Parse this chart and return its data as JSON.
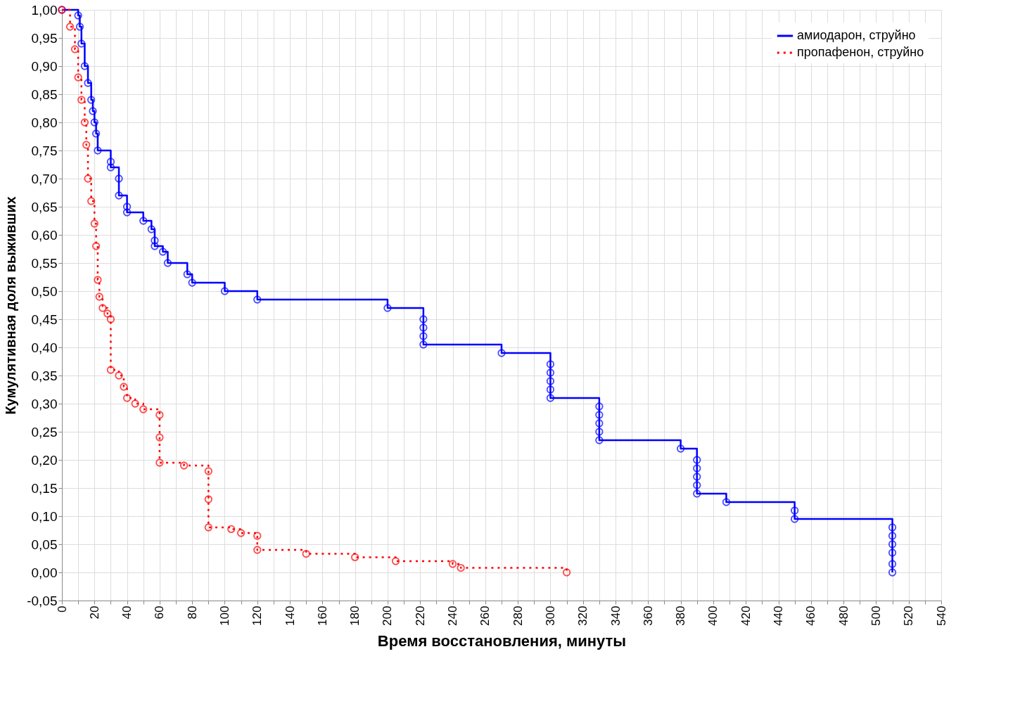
{
  "chart_data": {
    "type": "step",
    "xlabel": "Время восстановления, минуты",
    "ylabel": "Кумулятивная доля выживших",
    "xlim": [
      0,
      540
    ],
    "xticks": [
      0,
      {
        "value": 10,
        "label": null
      },
      20,
      {
        "value": 30,
        "label": null
      },
      40,
      {
        "value": 50,
        "label": null
      },
      60,
      {
        "value": 70,
        "label": null
      },
      80,
      {
        "value": 90,
        "label": null
      },
      100,
      {
        "value": 110,
        "label": null
      },
      120,
      {
        "value": 130,
        "label": null
      },
      140,
      {
        "value": 150,
        "label": null
      },
      160,
      {
        "value": 170,
        "label": null
      },
      180,
      {
        "value": 190,
        "label": null
      },
      200,
      {
        "value": 210,
        "label": null
      },
      220,
      {
        "value": 230,
        "label": null
      },
      240,
      {
        "value": 250,
        "label": null
      },
      260,
      {
        "value": 270,
        "label": null
      },
      280,
      {
        "value": 290,
        "label": null
      },
      300,
      {
        "value": 310,
        "label": null
      },
      320,
      {
        "value": 330,
        "label": null
      },
      340,
      {
        "value": 350,
        "label": null
      },
      360,
      {
        "value": 370,
        "label": null
      },
      380,
      {
        "value": 390,
        "label": null
      },
      400,
      {
        "value": 410,
        "label": null
      },
      420,
      {
        "value": 430,
        "label": null
      },
      440,
      {
        "value": 450,
        "label": null
      },
      460,
      {
        "value": 470,
        "label": null
      },
      480,
      {
        "value": 490,
        "label": null
      },
      500,
      {
        "value": 510,
        "label": null
      },
      520,
      {
        "value": 530,
        "label": null
      },
      540
    ],
    "ylim": [
      -0.05,
      1.0
    ],
    "yticks": [
      {
        "value": -0.05,
        "label": "-0,05"
      },
      {
        "value": 0,
        "label": "0,00"
      },
      {
        "value": 0.05,
        "label": "0,05"
      },
      {
        "value": 0.1,
        "label": "0,10"
      },
      {
        "value": 0.15,
        "label": "0,15"
      },
      {
        "value": 0.2,
        "label": "0,20"
      },
      {
        "value": 0.25,
        "label": "0,25"
      },
      {
        "value": 0.3,
        "label": "0,30"
      },
      {
        "value": 0.35,
        "label": "0,35"
      },
      {
        "value": 0.4,
        "label": "0,40"
      },
      {
        "value": 0.45,
        "label": "0,45"
      },
      {
        "value": 0.5,
        "label": "0,50"
      },
      {
        "value": 0.55,
        "label": "0,55"
      },
      {
        "value": 0.6,
        "label": "0,60"
      },
      {
        "value": 0.65,
        "label": "0,65"
      },
      {
        "value": 0.7,
        "label": "0,70"
      },
      {
        "value": 0.75,
        "label": "0,75"
      },
      {
        "value": 0.8,
        "label": "0,80"
      },
      {
        "value": 0.85,
        "label": "0,85"
      },
      {
        "value": 0.9,
        "label": "0,90"
      },
      {
        "value": 0.95,
        "label": "0,95"
      },
      {
        "value": 1.0,
        "label": "1,00"
      }
    ],
    "grid": true,
    "legend": "top right",
    "marker": "circle",
    "series": [
      {
        "name": "амиодарон, струйно",
        "color": "#0000ff",
        "line_style": "solid",
        "x": [
          0,
          10,
          11,
          12,
          14,
          16,
          18,
          19,
          20,
          21,
          22,
          30,
          30,
          35,
          35,
          40,
          40,
          50,
          55,
          57,
          57,
          62,
          65,
          77,
          80,
          100,
          120,
          200,
          222,
          222,
          222,
          222,
          270,
          300,
          300,
          300,
          300,
          300,
          330,
          330,
          330,
          330,
          330,
          380,
          390,
          390,
          390,
          390,
          390,
          408,
          450,
          450,
          510,
          510,
          510,
          510,
          510,
          510
        ],
        "values": [
          1.0,
          0.99,
          0.97,
          0.94,
          0.9,
          0.87,
          0.84,
          0.82,
          0.8,
          0.78,
          0.75,
          0.73,
          0.72,
          0.7,
          0.67,
          0.65,
          0.64,
          0.625,
          0.61,
          0.59,
          0.58,
          0.57,
          0.55,
          0.53,
          0.515,
          0.5,
          0.485,
          0.47,
          0.45,
          0.435,
          0.42,
          0.405,
          0.39,
          0.37,
          0.355,
          0.34,
          0.325,
          0.31,
          0.295,
          0.28,
          0.265,
          0.25,
          0.235,
          0.22,
          0.2,
          0.185,
          0.17,
          0.155,
          0.14,
          0.125,
          0.11,
          0.095,
          0.08,
          0.065,
          0.05,
          0.035,
          0.015,
          0.0
        ]
      },
      {
        "name": "пропафенон, струйно",
        "color": "#ff0000",
        "line_style": "dotted",
        "x": [
          0,
          5,
          8,
          10,
          12,
          14,
          15,
          16,
          18,
          20,
          21,
          22,
          23,
          25,
          28,
          30,
          30,
          35,
          38,
          40,
          45,
          50,
          60,
          60,
          60,
          75,
          90,
          90,
          90,
          104,
          110,
          120,
          120,
          150,
          180,
          205,
          240,
          245,
          310
        ],
        "values": [
          1.0,
          0.97,
          0.93,
          0.88,
          0.84,
          0.8,
          0.76,
          0.7,
          0.66,
          0.62,
          0.58,
          0.52,
          0.49,
          0.47,
          0.46,
          0.45,
          0.36,
          0.35,
          0.33,
          0.31,
          0.3,
          0.29,
          0.28,
          0.24,
          0.195,
          0.19,
          0.18,
          0.13,
          0.08,
          0.077,
          0.07,
          0.065,
          0.04,
          0.033,
          0.027,
          0.02,
          0.015,
          0.008,
          0.0
        ]
      }
    ]
  }
}
